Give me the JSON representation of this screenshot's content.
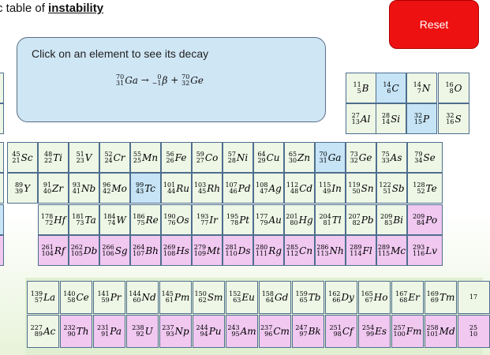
{
  "title": {
    "prefix": "c table of ",
    "emph": "instability"
  },
  "reset_label": "Reset",
  "info": {
    "prompt": "Click on an element to see its decay",
    "equation": {
      "parent": {
        "mass": "70",
        "z": "31",
        "sym": "Ga"
      },
      "arrow": "→",
      "particle": {
        "mass": "0",
        "z": "−1",
        "sym": "β"
      },
      "plus": "+",
      "daughter": {
        "mass": "70",
        "z": "32",
        "sym": "Ge"
      }
    }
  },
  "colors": {
    "stable": "#eef6e6",
    "beta_minus": "#c6e4f6",
    "alpha": "#f0c8f0",
    "reset": "#ee1111"
  },
  "rows": {
    "p2": [
      {
        "m": "11",
        "z": "5",
        "s": "B",
        "c": "x"
      },
      {
        "m": "14",
        "z": "6",
        "s": "C",
        "c": "b"
      },
      {
        "m": "14",
        "z": "7",
        "s": "N",
        "c": "x"
      },
      {
        "m": "16",
        "z": "8",
        "s": "O",
        "c": "x"
      }
    ],
    "p3": [
      {
        "m": "27",
        "z": "13",
        "s": "Al",
        "c": "x"
      },
      {
        "m": "28",
        "z": "14",
        "s": "Si",
        "c": "x"
      },
      {
        "m": "32",
        "z": "15",
        "s": "P",
        "c": "b"
      },
      {
        "m": "32",
        "z": "16",
        "s": "S",
        "c": "x"
      }
    ],
    "p4": [
      {
        "m": "45",
        "z": "21",
        "s": "Sc",
        "c": "x"
      },
      {
        "m": "48",
        "z": "22",
        "s": "Ti",
        "c": "x"
      },
      {
        "m": "51",
        "z": "23",
        "s": "V",
        "c": "x"
      },
      {
        "m": "52",
        "z": "24",
        "s": "Cr",
        "c": "x"
      },
      {
        "m": "55",
        "z": "25",
        "s": "Mn",
        "c": "x"
      },
      {
        "m": "56",
        "z": "26",
        "s": "Fe",
        "c": "x"
      },
      {
        "m": "59",
        "z": "27",
        "s": "Co",
        "c": "x"
      },
      {
        "m": "57",
        "z": "28",
        "s": "Ni",
        "c": "x"
      },
      {
        "m": "64",
        "z": "29",
        "s": "Cu",
        "c": "x"
      },
      {
        "m": "65",
        "z": "30",
        "s": "Zn",
        "c": "x"
      },
      {
        "m": "70",
        "z": "31",
        "s": "Ga",
        "c": "b"
      },
      {
        "m": "73",
        "z": "32",
        "s": "Ge",
        "c": "x"
      },
      {
        "m": "75",
        "z": "33",
        "s": "As",
        "c": "x"
      },
      {
        "m": "79",
        "z": "34",
        "s": "Se",
        "c": "x"
      }
    ],
    "p5": [
      {
        "m": "89",
        "z": "39",
        "s": "Y",
        "c": "x"
      },
      {
        "m": "91",
        "z": "40",
        "s": "Zr",
        "c": "x"
      },
      {
        "m": "93",
        "z": "41",
        "s": "Nb",
        "c": "x"
      },
      {
        "m": "96",
        "z": "42",
        "s": "Mo",
        "c": "x"
      },
      {
        "m": "99",
        "z": "43",
        "s": "Tc",
        "c": "b"
      },
      {
        "m": "101",
        "z": "44",
        "s": "Ru",
        "c": "x"
      },
      {
        "m": "103",
        "z": "45",
        "s": "Rh",
        "c": "x"
      },
      {
        "m": "107",
        "z": "46",
        "s": "Pd",
        "c": "x"
      },
      {
        "m": "108",
        "z": "47",
        "s": "Ag",
        "c": "x"
      },
      {
        "m": "112",
        "z": "48",
        "s": "Cd",
        "c": "x"
      },
      {
        "m": "115",
        "z": "49",
        "s": "In",
        "c": "x"
      },
      {
        "m": "119",
        "z": "50",
        "s": "Sn",
        "c": "x"
      },
      {
        "m": "122",
        "z": "51",
        "s": "Sb",
        "c": "x"
      },
      {
        "m": "128",
        "z": "52",
        "s": "Te",
        "c": "x"
      }
    ],
    "p6": [
      {
        "m": "178",
        "z": "72",
        "s": "Hf",
        "c": "x"
      },
      {
        "m": "181",
        "z": "73",
        "s": "Ta",
        "c": "x"
      },
      {
        "m": "184",
        "z": "74",
        "s": "W",
        "c": "x"
      },
      {
        "m": "186",
        "z": "75",
        "s": "Re",
        "c": "x"
      },
      {
        "m": "190",
        "z": "76",
        "s": "Os",
        "c": "x"
      },
      {
        "m": "193",
        "z": "77",
        "s": "Ir",
        "c": "x"
      },
      {
        "m": "195",
        "z": "78",
        "s": "Pt",
        "c": "x"
      },
      {
        "m": "177",
        "z": "79",
        "s": "Au",
        "c": "x"
      },
      {
        "m": "201",
        "z": "80",
        "s": "Hg",
        "c": "x"
      },
      {
        "m": "204",
        "z": "81",
        "s": "Tl",
        "c": "x"
      },
      {
        "m": "207",
        "z": "82",
        "s": "Pb",
        "c": "x"
      },
      {
        "m": "209",
        "z": "83",
        "s": "Bi",
        "c": "x"
      },
      {
        "m": "209",
        "z": "84",
        "s": "Po",
        "c": "p"
      }
    ],
    "p7": [
      {
        "m": "261",
        "z": "104",
        "s": "Rf",
        "c": "p"
      },
      {
        "m": "262",
        "z": "105",
        "s": "Db",
        "c": "p"
      },
      {
        "m": "266",
        "z": "106",
        "s": "Sg",
        "c": "p"
      },
      {
        "m": "264",
        "z": "107",
        "s": "Bh",
        "c": "p"
      },
      {
        "m": "269",
        "z": "108",
        "s": "Hs",
        "c": "p"
      },
      {
        "m": "279",
        "z": "109",
        "s": "Mt",
        "c": "p"
      },
      {
        "m": "281",
        "z": "110",
        "s": "Ds",
        "c": "p"
      },
      {
        "m": "280",
        "z": "111",
        "s": "Rg",
        "c": "p"
      },
      {
        "m": "285",
        "z": "112",
        "s": "Cn",
        "c": "p"
      },
      {
        "m": "286",
        "z": "113",
        "s": "Nh",
        "c": "p"
      },
      {
        "m": "289",
        "z": "114",
        "s": "Fl",
        "c": "p"
      },
      {
        "m": "289",
        "z": "115",
        "s": "Mc",
        "c": "p"
      },
      {
        "m": "293",
        "z": "116",
        "s": "Lv",
        "c": "p"
      }
    ],
    "lan": [
      {
        "m": "139",
        "z": "57",
        "s": "La",
        "c": "x"
      },
      {
        "m": "140",
        "z": "58",
        "s": "Ce",
        "c": "x"
      },
      {
        "m": "141",
        "z": "59",
        "s": "Pr",
        "c": "x"
      },
      {
        "m": "144",
        "z": "60",
        "s": "Nd",
        "c": "x"
      },
      {
        "m": "145",
        "z": "61",
        "s": "Pm",
        "c": "x"
      },
      {
        "m": "150",
        "z": "62",
        "s": "Sm",
        "c": "x"
      },
      {
        "m": "152",
        "z": "63",
        "s": "Eu",
        "c": "x"
      },
      {
        "m": "158",
        "z": "64",
        "s": "Gd",
        "c": "x"
      },
      {
        "m": "159",
        "z": "65",
        "s": "Tb",
        "c": "x"
      },
      {
        "m": "162",
        "z": "66",
        "s": "Dy",
        "c": "x"
      },
      {
        "m": "165",
        "z": "67",
        "s": "Ho",
        "c": "x"
      },
      {
        "m": "167",
        "z": "68",
        "s": "Er",
        "c": "x"
      },
      {
        "m": "169",
        "z": "69",
        "s": "Tm",
        "c": "x"
      },
      {
        "m": "17",
        "z": "",
        "s": "",
        "c": "x"
      }
    ],
    "act": [
      {
        "m": "227",
        "z": "89",
        "s": "Ac",
        "c": "b"
      },
      {
        "m": "232",
        "z": "90",
        "s": "Th",
        "c": "p"
      },
      {
        "m": "231",
        "z": "91",
        "s": "Pa",
        "c": "p"
      },
      {
        "m": "238",
        "z": "92",
        "s": "U",
        "c": "p"
      },
      {
        "m": "237",
        "z": "93",
        "s": "Np",
        "c": "p"
      },
      {
        "m": "244",
        "z": "94",
        "s": "Pu",
        "c": "p"
      },
      {
        "m": "243",
        "z": "95",
        "s": "Am",
        "c": "p"
      },
      {
        "m": "237",
        "z": "96",
        "s": "Cm",
        "c": "p"
      },
      {
        "m": "247",
        "z": "97",
        "s": "Bk",
        "c": "p"
      },
      {
        "m": "251",
        "z": "98",
        "s": "Cf",
        "c": "p"
      },
      {
        "m": "254",
        "z": "99",
        "s": "Es",
        "c": "p"
      },
      {
        "m": "257",
        "z": "100",
        "s": "Fm",
        "c": "p"
      },
      {
        "m": "258",
        "z": "101",
        "s": "Md",
        "c": "p"
      },
      {
        "m": "25",
        "z": "10",
        "s": "",
        "c": "p"
      }
    ]
  }
}
